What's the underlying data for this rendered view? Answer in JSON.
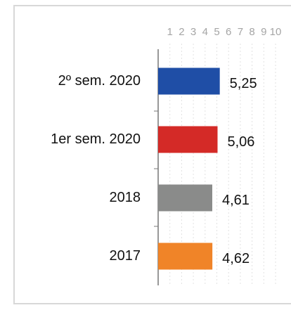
{
  "chart_data": {
    "type": "hbar",
    "categories": [
      "2º sem. 2020",
      "1er sem. 2020",
      "2018",
      "2017"
    ],
    "values": [
      5.25,
      5.06,
      4.61,
      4.62
    ],
    "value_labels": [
      "5,25",
      "5,06",
      "4,61",
      "4,62"
    ],
    "colors": [
      "#1f4ea6",
      "#d42a27",
      "#8a8b8a",
      "#f08428"
    ],
    "xlim": [
      0,
      10
    ],
    "xticks": [
      1,
      2,
      3,
      4,
      5,
      6,
      7,
      8,
      9,
      10
    ],
    "grid": true
  }
}
